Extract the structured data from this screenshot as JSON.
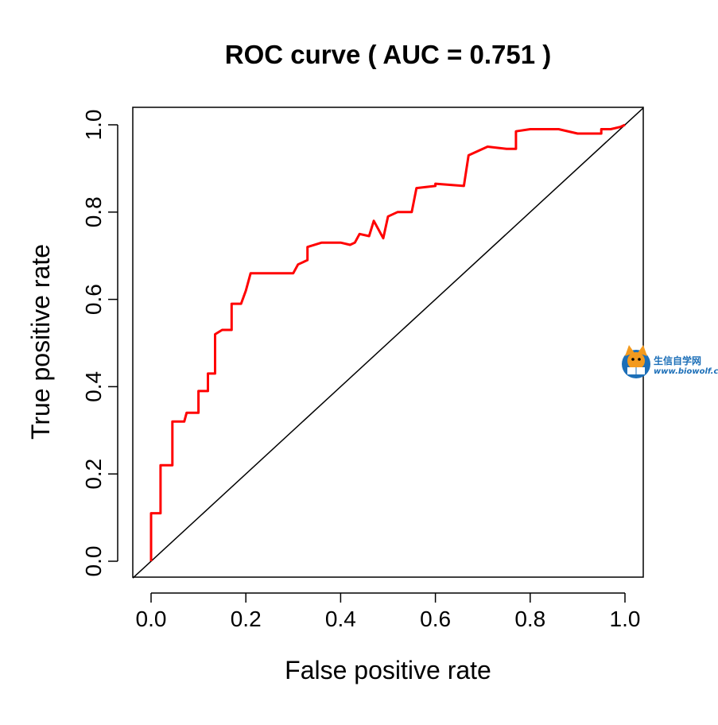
{
  "chart_data": {
    "type": "line",
    "title": "ROC curve ( AUC =  0.751 )",
    "xlabel": "False positive rate",
    "ylabel": "True positive rate",
    "xlim": [
      0,
      1
    ],
    "ylim": [
      0,
      1
    ],
    "x_ticks": [
      "0.0",
      "0.2",
      "0.4",
      "0.6",
      "0.8",
      "1.0"
    ],
    "y_ticks": [
      "0.0",
      "0.2",
      "0.4",
      "0.6",
      "0.8",
      "1.0"
    ],
    "grid": false,
    "legend": "none",
    "series": [
      {
        "color": "#ff0000",
        "x": [
          0,
          0,
          0.02,
          0.02,
          0.025,
          0.045,
          0.045,
          0.07,
          0.075,
          0.1,
          0.1,
          0.12,
          0.12,
          0.135,
          0.135,
          0.15,
          0.17,
          0.17,
          0.19,
          0.2,
          0.21,
          0.24,
          0.26,
          0.3,
          0.31,
          0.33,
          0.33,
          0.36,
          0.4,
          0.42,
          0.43,
          0.44,
          0.46,
          0.47,
          0.48,
          0.49,
          0.5,
          0.52,
          0.55,
          0.56,
          0.6,
          0.6,
          0.66,
          0.67,
          0.67,
          0.71,
          0.75,
          0.77,
          0.77,
          0.8,
          0.86,
          0.9,
          0.94,
          0.95,
          0.95,
          0.97,
          0.99,
          1.0
        ],
        "y": [
          0,
          0.11,
          0.11,
          0.22,
          0.22,
          0.22,
          0.32,
          0.32,
          0.34,
          0.34,
          0.39,
          0.39,
          0.43,
          0.43,
          0.52,
          0.53,
          0.53,
          0.59,
          0.59,
          0.62,
          0.66,
          0.66,
          0.66,
          0.66,
          0.68,
          0.69,
          0.72,
          0.73,
          0.73,
          0.725,
          0.73,
          0.75,
          0.745,
          0.78,
          0.76,
          0.74,
          0.79,
          0.8,
          0.8,
          0.855,
          0.86,
          0.865,
          0.86,
          0.93,
          0.93,
          0.95,
          0.945,
          0.945,
          0.985,
          0.99,
          0.99,
          0.98,
          0.98,
          0.98,
          0.99,
          0.99,
          0.995,
          1.0
        ]
      }
    ],
    "reference_line": {
      "x": [
        0,
        1
      ],
      "y": [
        0,
        1
      ],
      "color": "#000000"
    }
  },
  "watermark": {
    "name_cn": "生信自学网",
    "url": "www.biowolf.cn"
  }
}
